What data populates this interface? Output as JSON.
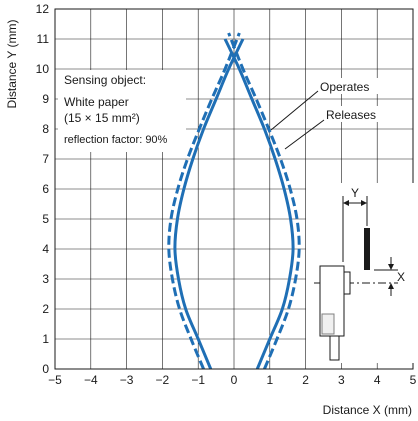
{
  "chart_data": {
    "type": "line",
    "xlabel": "Distance X (mm)",
    "ylabel": "Distance Y (mm)",
    "xlim": [
      -5,
      5
    ],
    "ylim": [
      0,
      12
    ],
    "x_ticks": [
      "−5",
      "−4",
      "−3",
      "−2",
      "−1",
      "0",
      "1",
      "2",
      "3",
      "4",
      "5"
    ],
    "y_ticks": [
      "0",
      "1",
      "2",
      "3",
      "4",
      "5",
      "6",
      "7",
      "8",
      "9",
      "10",
      "11",
      "12"
    ],
    "grid": true,
    "color": "#1f6fb5",
    "series": [
      {
        "name": "Operates",
        "style": "solid",
        "right_branch": [
          [
            0.65,
            0.0
          ],
          [
            1.0,
            1.0
          ],
          [
            1.35,
            2.0
          ],
          [
            1.55,
            3.0
          ],
          [
            1.65,
            4.0
          ],
          [
            1.58,
            5.0
          ],
          [
            1.4,
            6.0
          ],
          [
            1.15,
            7.0
          ],
          [
            0.85,
            8.0
          ],
          [
            0.5,
            9.0
          ],
          [
            0.15,
            10.0
          ],
          [
            -0.25,
            11.0
          ]
        ],
        "left_branch": [
          [
            -0.65,
            0.0
          ],
          [
            -1.0,
            1.0
          ],
          [
            -1.35,
            2.0
          ],
          [
            -1.55,
            3.0
          ],
          [
            -1.65,
            4.0
          ],
          [
            -1.58,
            5.0
          ],
          [
            -1.4,
            6.0
          ],
          [
            -1.15,
            7.0
          ],
          [
            -0.85,
            8.0
          ],
          [
            -0.5,
            9.0
          ],
          [
            -0.15,
            10.0
          ],
          [
            0.25,
            11.0
          ]
        ]
      },
      {
        "name": "Releases",
        "style": "dashed",
        "right_branch": [
          [
            0.85,
            0.0
          ],
          [
            1.2,
            1.0
          ],
          [
            1.52,
            2.0
          ],
          [
            1.72,
            3.0
          ],
          [
            1.82,
            4.0
          ],
          [
            1.76,
            5.0
          ],
          [
            1.57,
            6.0
          ],
          [
            1.3,
            7.0
          ],
          [
            0.97,
            8.0
          ],
          [
            0.62,
            9.0
          ],
          [
            0.25,
            10.0
          ],
          [
            -0.15,
            11.2
          ]
        ],
        "left_branch": [
          [
            -0.85,
            0.0
          ],
          [
            -1.2,
            1.0
          ],
          [
            -1.52,
            2.0
          ],
          [
            -1.72,
            3.0
          ],
          [
            -1.82,
            4.0
          ],
          [
            -1.76,
            5.0
          ],
          [
            -1.57,
            6.0
          ],
          [
            -1.3,
            7.0
          ],
          [
            -0.97,
            8.0
          ],
          [
            -0.62,
            9.0
          ],
          [
            -0.25,
            10.0
          ],
          [
            0.15,
            11.2
          ]
        ]
      }
    ],
    "annotations": {
      "sensing_object_lines": [
        "Sensing object:",
        "White paper",
        "(15 × 15 mm²)",
        "reflection factor: 90%"
      ],
      "inset_y_label": "Y",
      "inset_x_label": "X"
    }
  }
}
